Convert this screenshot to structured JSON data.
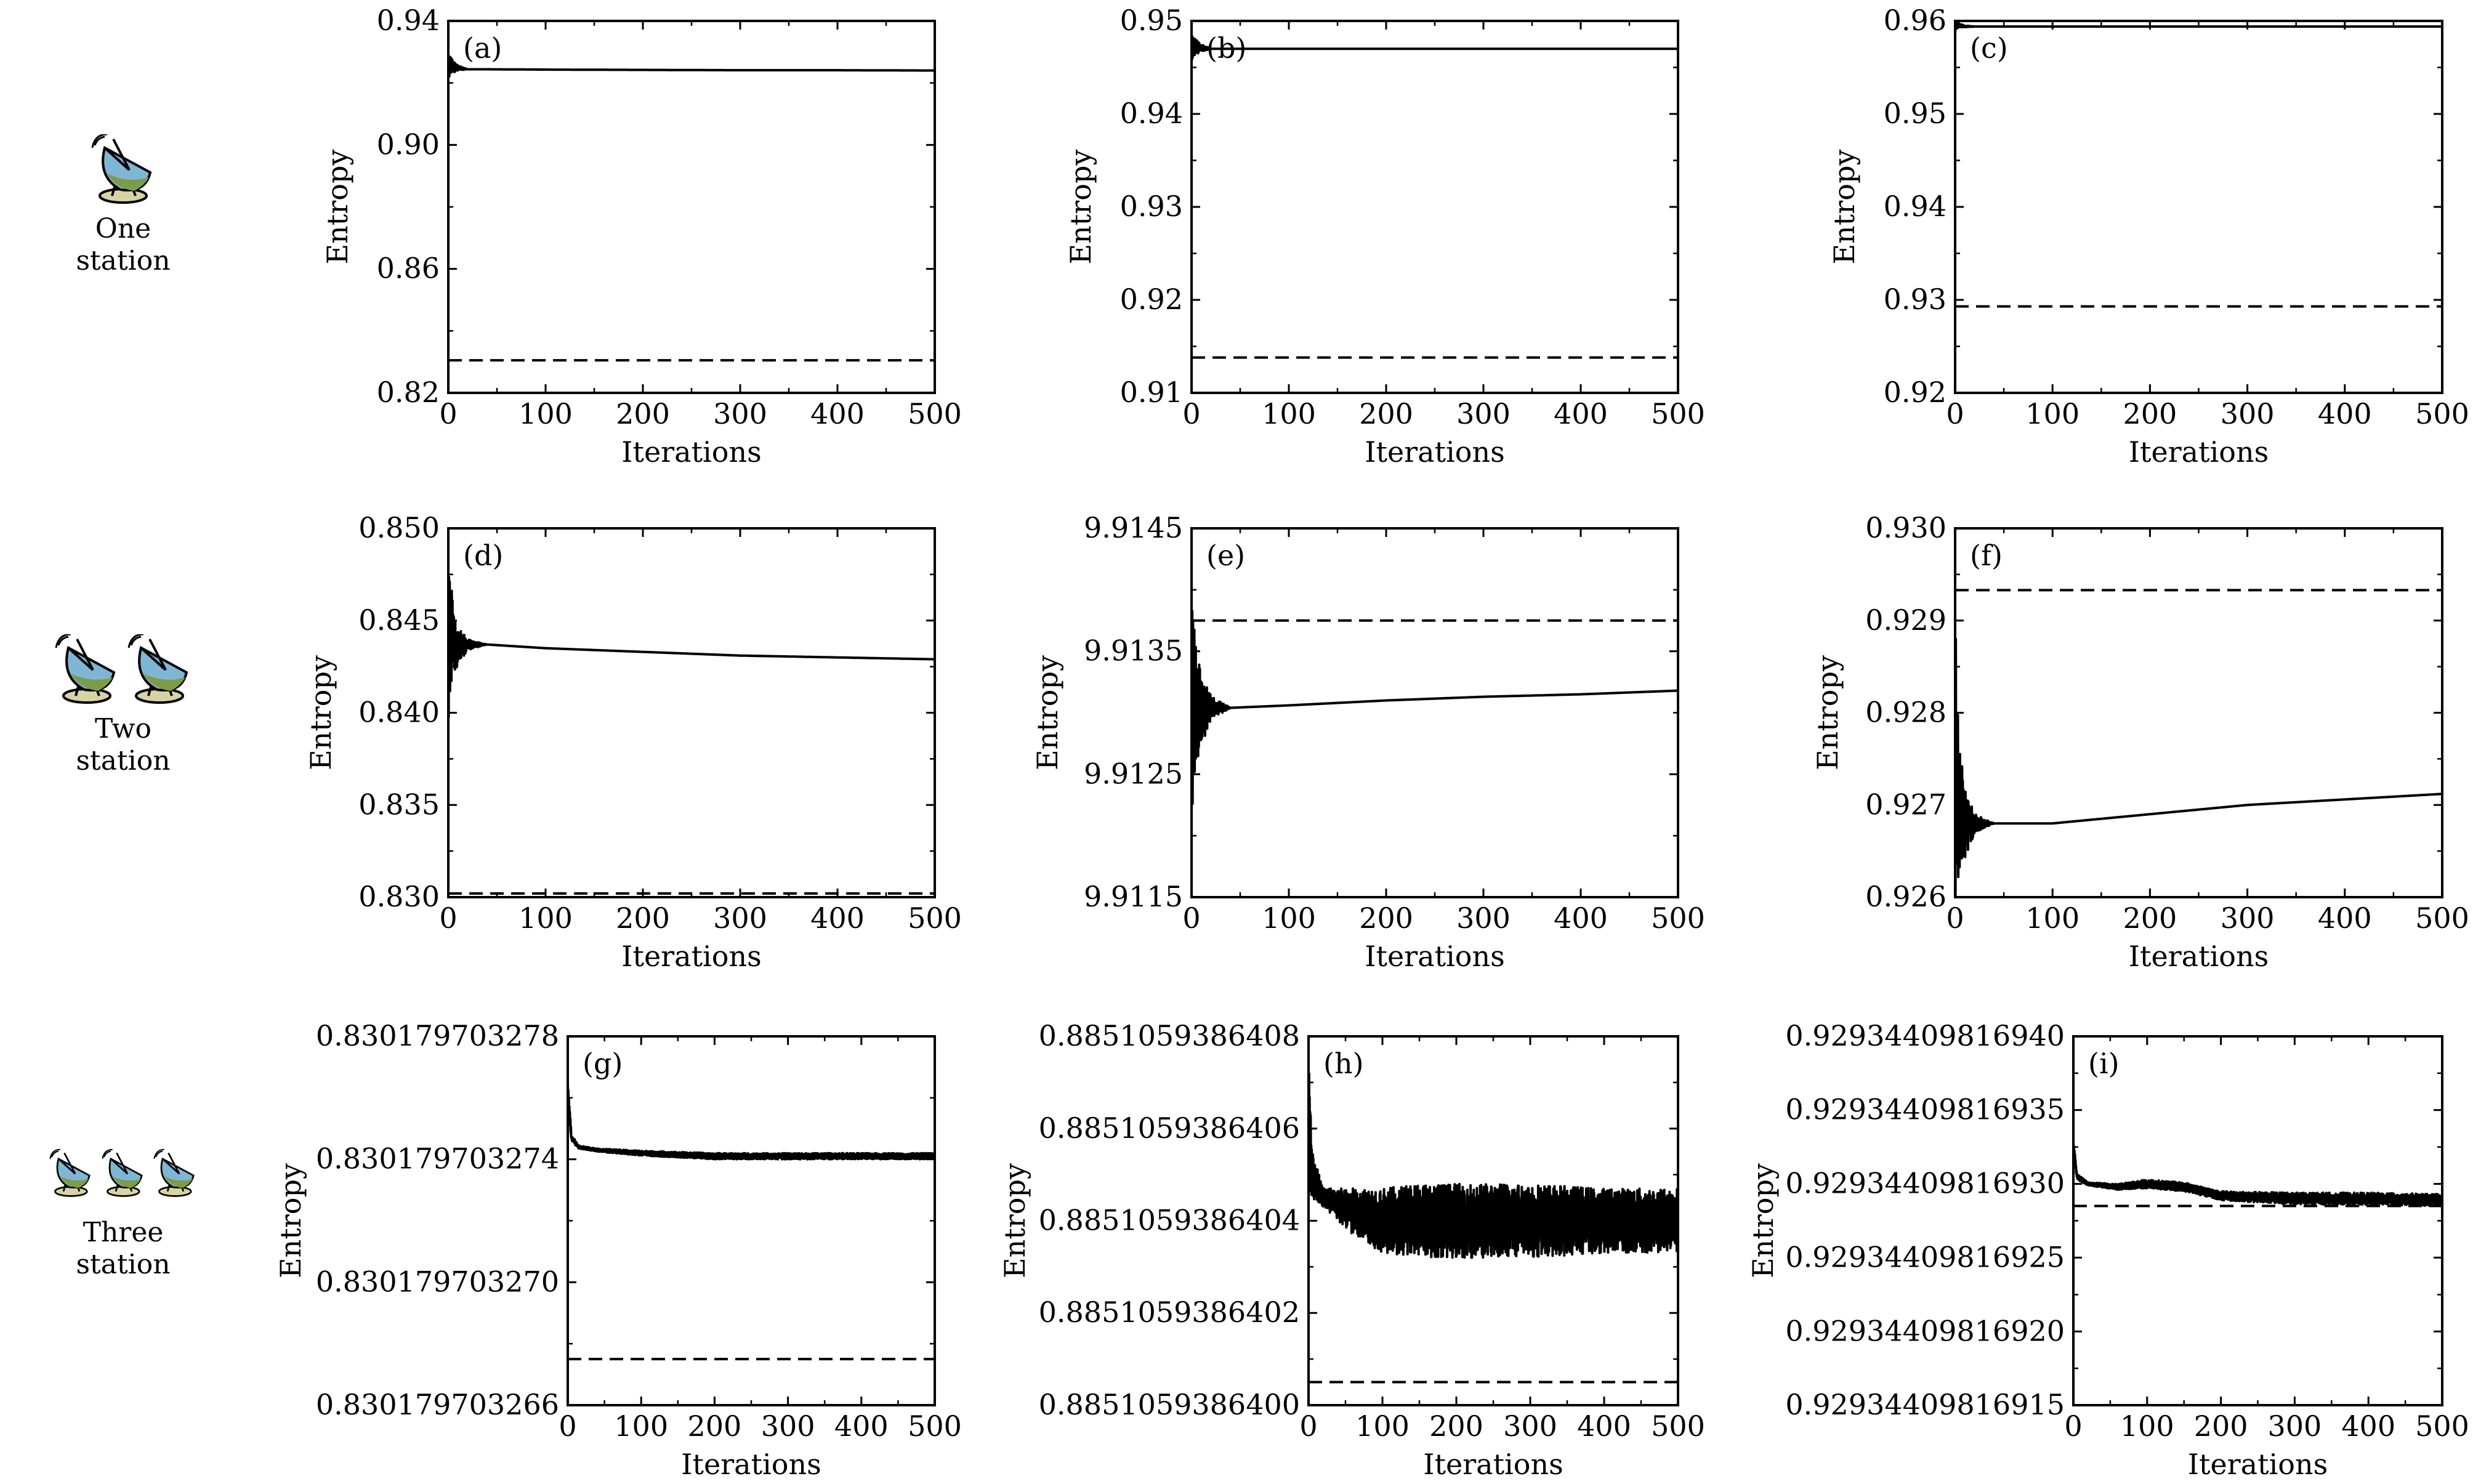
{
  "row_labels": [
    {
      "line1": "One",
      "line2": "station",
      "dish_count": 1
    },
    {
      "line1": "Two",
      "line2": "station",
      "dish_count": 2
    },
    {
      "line1": "Three",
      "line2": "station",
      "dish_count": 3
    }
  ],
  "icon": "satellite-dish-icon",
  "colors": {
    "line": "#000000",
    "dish_blue": "#7fb6d6",
    "dish_green": "#7e9b48",
    "dish_base": "#d7d3a4"
  },
  "chart_data": [
    {
      "type": "line",
      "panel_label": "(a)",
      "xlabel": "Iterations",
      "ylabel": "Entropy",
      "xlim": [
        0,
        500
      ],
      "ylim": [
        0.82,
        0.94
      ],
      "xticks": [
        "0",
        "100",
        "200",
        "300",
        "400",
        "500"
      ],
      "yticks": [
        "0.82",
        "0.86",
        "0.90",
        "0.94"
      ],
      "series": [
        {
          "style": "solid",
          "x": [
            0,
            2,
            5,
            10,
            20,
            40,
            100,
            200,
            300,
            400,
            500
          ],
          "y": [
            0.925,
            0.9262,
            0.9251,
            0.9248,
            0.9244,
            0.9244,
            0.9243,
            0.9242,
            0.9241,
            0.9241,
            0.924
          ],
          "noise": [
            0.004,
            0.003,
            0.002,
            0.0008,
            0,
            0,
            0,
            0,
            0,
            0,
            0
          ]
        },
        {
          "style": "dashed",
          "x": [
            0,
            500
          ],
          "y": [
            0.8305,
            0.8305
          ]
        }
      ]
    },
    {
      "type": "line",
      "panel_label": "(b)",
      "xlabel": "Iterations",
      "ylabel": "Entropy",
      "xlim": [
        0,
        500
      ],
      "ylim": [
        0.91,
        0.95
      ],
      "xticks": [
        "0",
        "100",
        "200",
        "300",
        "400",
        "500"
      ],
      "yticks": [
        "0.91",
        "0.92",
        "0.93",
        "0.94",
        "0.95"
      ],
      "series": [
        {
          "style": "solid",
          "x": [
            0,
            2,
            5,
            10,
            20,
            40,
            100,
            200,
            300,
            400,
            500
          ],
          "y": [
            0.947,
            0.9475,
            0.9472,
            0.9471,
            0.947,
            0.947,
            0.947,
            0.947,
            0.947,
            0.947,
            0.947
          ],
          "noise": [
            0.0015,
            0.0012,
            0.0008,
            0.0004,
            0,
            0,
            0,
            0,
            0,
            0,
            0
          ]
        },
        {
          "style": "dashed",
          "x": [
            0,
            500
          ],
          "y": [
            0.9138,
            0.9138
          ]
        }
      ]
    },
    {
      "type": "line",
      "panel_label": "(c)",
      "xlabel": "Iterations",
      "ylabel": "Entropy",
      "xlim": [
        0,
        500
      ],
      "ylim": [
        0.92,
        0.96
      ],
      "xticks": [
        "0",
        "100",
        "200",
        "300",
        "400",
        "500"
      ],
      "yticks": [
        "0.92",
        "0.93",
        "0.94",
        "0.95",
        "0.96"
      ],
      "series": [
        {
          "style": "solid",
          "x": [
            0,
            2,
            5,
            10,
            20,
            40,
            100,
            200,
            300,
            400,
            500
          ],
          "y": [
            0.9594,
            0.9596,
            0.9595,
            0.9594,
            0.9594,
            0.9594,
            0.9594,
            0.9594,
            0.9594,
            0.9594,
            0.9594
          ],
          "noise": [
            0.0006,
            0.0004,
            0.0002,
            0.0001,
            0,
            0,
            0,
            0,
            0,
            0,
            0
          ]
        },
        {
          "style": "dashed",
          "x": [
            0,
            500
          ],
          "y": [
            0.9293,
            0.9293
          ]
        }
      ]
    },
    {
      "type": "line",
      "panel_label": "(d)",
      "xlabel": "Iterations",
      "ylabel": "Entropy",
      "xlim": [
        0,
        500
      ],
      "ylim": [
        0.83,
        0.85
      ],
      "xticks": [
        "0",
        "100",
        "200",
        "300",
        "400",
        "500"
      ],
      "yticks": [
        "0.830",
        "0.835",
        "0.840",
        "0.845",
        "0.850"
      ],
      "series": [
        {
          "style": "solid",
          "x": [
            0,
            2,
            5,
            10,
            20,
            40,
            100,
            200,
            300,
            400,
            500
          ],
          "y": [
            0.844,
            0.8448,
            0.844,
            0.8436,
            0.8437,
            0.8437,
            0.8435,
            0.8433,
            0.8431,
            0.843,
            0.8429
          ],
          "noise": [
            0.005,
            0.0035,
            0.002,
            0.001,
            0.0003,
            0,
            0,
            0,
            0,
            0,
            0
          ]
        },
        {
          "style": "dashed",
          "x": [
            0,
            500
          ],
          "y": [
            0.8302,
            0.8302
          ]
        }
      ]
    },
    {
      "type": "line",
      "panel_label": "(e)",
      "xlabel": "Iterations",
      "ylabel": "Entropy",
      "xlim": [
        0,
        500
      ],
      "ylim": [
        9.9115,
        9.9145
      ],
      "xticks": [
        "0",
        "100",
        "200",
        "300",
        "400",
        "500"
      ],
      "yticks": [
        "9.9115",
        "9.9125",
        "9.9135",
        "9.9145"
      ],
      "series": [
        {
          "style": "solid",
          "x": [
            0,
            2,
            5,
            10,
            20,
            40,
            100,
            200,
            300,
            400,
            500
          ],
          "y": [
            9.9131,
            9.91295,
            9.913,
            9.91303,
            9.91304,
            9.91304,
            9.91306,
            9.9131,
            9.91313,
            9.91315,
            9.91318
          ],
          "noise": [
            0.001,
            0.0008,
            0.0005,
            0.0003,
            0.0001,
            0,
            0,
            0,
            0,
            0,
            0
          ]
        },
        {
          "style": "dashed",
          "x": [
            0,
            500
          ],
          "y": [
            9.91375,
            9.91375
          ]
        }
      ]
    },
    {
      "type": "line",
      "panel_label": "(f)",
      "xlabel": "Iterations",
      "ylabel": "Entropy",
      "xlim": [
        0,
        500
      ],
      "ylim": [
        0.926,
        0.93
      ],
      "xticks": [
        "0",
        "100",
        "200",
        "300",
        "400",
        "500"
      ],
      "yticks": [
        "0.926",
        "0.927",
        "0.928",
        "0.929",
        "0.930"
      ],
      "series": [
        {
          "style": "solid",
          "x": [
            0,
            2,
            5,
            10,
            20,
            40,
            100,
            200,
            300,
            400,
            500
          ],
          "y": [
            0.9275,
            0.9272,
            0.927,
            0.9268,
            0.9268,
            0.9268,
            0.9268,
            0.9269,
            0.927,
            0.92706,
            0.92712
          ],
          "noise": [
            0.0016,
            0.0011,
            0.0007,
            0.0004,
            0.0001,
            0,
            0,
            0,
            0,
            0,
            0
          ]
        },
        {
          "style": "dashed",
          "x": [
            0,
            500
          ],
          "y": [
            0.92933,
            0.92933
          ]
        }
      ]
    },
    {
      "type": "line",
      "panel_label": "(g)",
      "xlabel": "Iterations",
      "ylabel": "Entropy",
      "xlim": [
        0,
        500
      ],
      "ylim": [
        0.830179703266,
        0.830179703278
      ],
      "xticks": [
        "0",
        "100",
        "200",
        "300",
        "400",
        "500"
      ],
      "yticks": [
        "0.830179703266",
        "0.830179703270",
        "0.830179703274",
        "0.830179703278"
      ],
      "series": [
        {
          "style": "solid",
          "x": [
            0,
            5,
            15,
            40,
            100,
            200,
            300,
            400,
            500
          ],
          "y": [
            0.8301797032762,
            0.8301797032747,
            0.8301797032744,
            0.8301797032743,
            0.8301797032742,
            0.8301797032741,
            0.8301797032741,
            0.8301797032741,
            0.8301797032741
          ],
          "noise": [
            4e-13,
            1e-13,
            5e-14,
            5e-14,
            8e-14,
            1e-13,
            1e-13,
            1e-13,
            1e-13
          ]
        },
        {
          "style": "dashed",
          "x": [
            0,
            500
          ],
          "y": [
            0.8301797032675,
            0.8301797032675
          ]
        }
      ]
    },
    {
      "type": "line",
      "panel_label": "(h)",
      "xlabel": "Iterations",
      "ylabel": "Entropy",
      "xlim": [
        0,
        500
      ],
      "ylim": [
        0.88510593864,
        0.8851059386408
      ],
      "xticks": [
        "0",
        "100",
        "200",
        "300",
        "400",
        "500"
      ],
      "yticks": [
        "0.8851059386400",
        "0.8851059386402",
        "0.8851059386404",
        "0.8851059386406",
        "0.8851059386408"
      ],
      "series": [
        {
          "style": "solid",
          "x": [
            0,
            5,
            20,
            60,
            100,
            150,
            200,
            300,
            400,
            500
          ],
          "y": [
            0.8851059386406,
            0.8851059386405,
            0.88510593864045,
            0.88510593864042,
            0.8851059386404,
            0.8851059386404,
            0.8851059386404,
            0.8851059386404,
            0.8851059386404,
            0.8851059386404
          ],
          "noise": [
            1.5e-13,
            5e-14,
            2e-14,
            5e-14,
            7e-14,
            8e-14,
            8e-14,
            8e-14,
            7e-14,
            7e-14
          ]
        },
        {
          "style": "dashed",
          "x": [
            0,
            500
          ],
          "y": [
            0.88510593864005,
            0.88510593864005
          ]
        }
      ]
    },
    {
      "type": "line",
      "panel_label": "(i)",
      "xlabel": "Iterations",
      "ylabel": "Entropy",
      "xlim": [
        0,
        500
      ],
      "ylim": [
        0.92934409816915,
        0.9293440981694
      ],
      "xticks": [
        "0",
        "100",
        "200",
        "300",
        "400",
        "500"
      ],
      "yticks": [
        "0.92934409816915",
        "0.92934409816920",
        "0.92934409816925",
        "0.92934409816930",
        "0.92934409816935",
        "0.92934409816940"
      ],
      "series": [
        {
          "style": "solid",
          "x": [
            0,
            5,
            20,
            60,
            100,
            150,
            200,
            300,
            400,
            500
          ],
          "y": [
            0.929344098169325,
            0.929344098169305,
            0.9293440981693,
            0.929344098169298,
            0.9293440981693,
            0.929344098169298,
            0.929344098169292,
            0.92934409816929,
            0.92934409816929,
            0.929344098169289
          ],
          "noise": [
            5e-15,
            2e-15,
            1e-15,
            2e-15,
            3e-15,
            3e-15,
            3e-15,
            4e-15,
            4e-15,
            4e-15
          ]
        },
        {
          "style": "dashed",
          "x": [
            0,
            500
          ],
          "y": [
            0.929344098169285,
            0.929344098169285
          ]
        }
      ]
    }
  ]
}
